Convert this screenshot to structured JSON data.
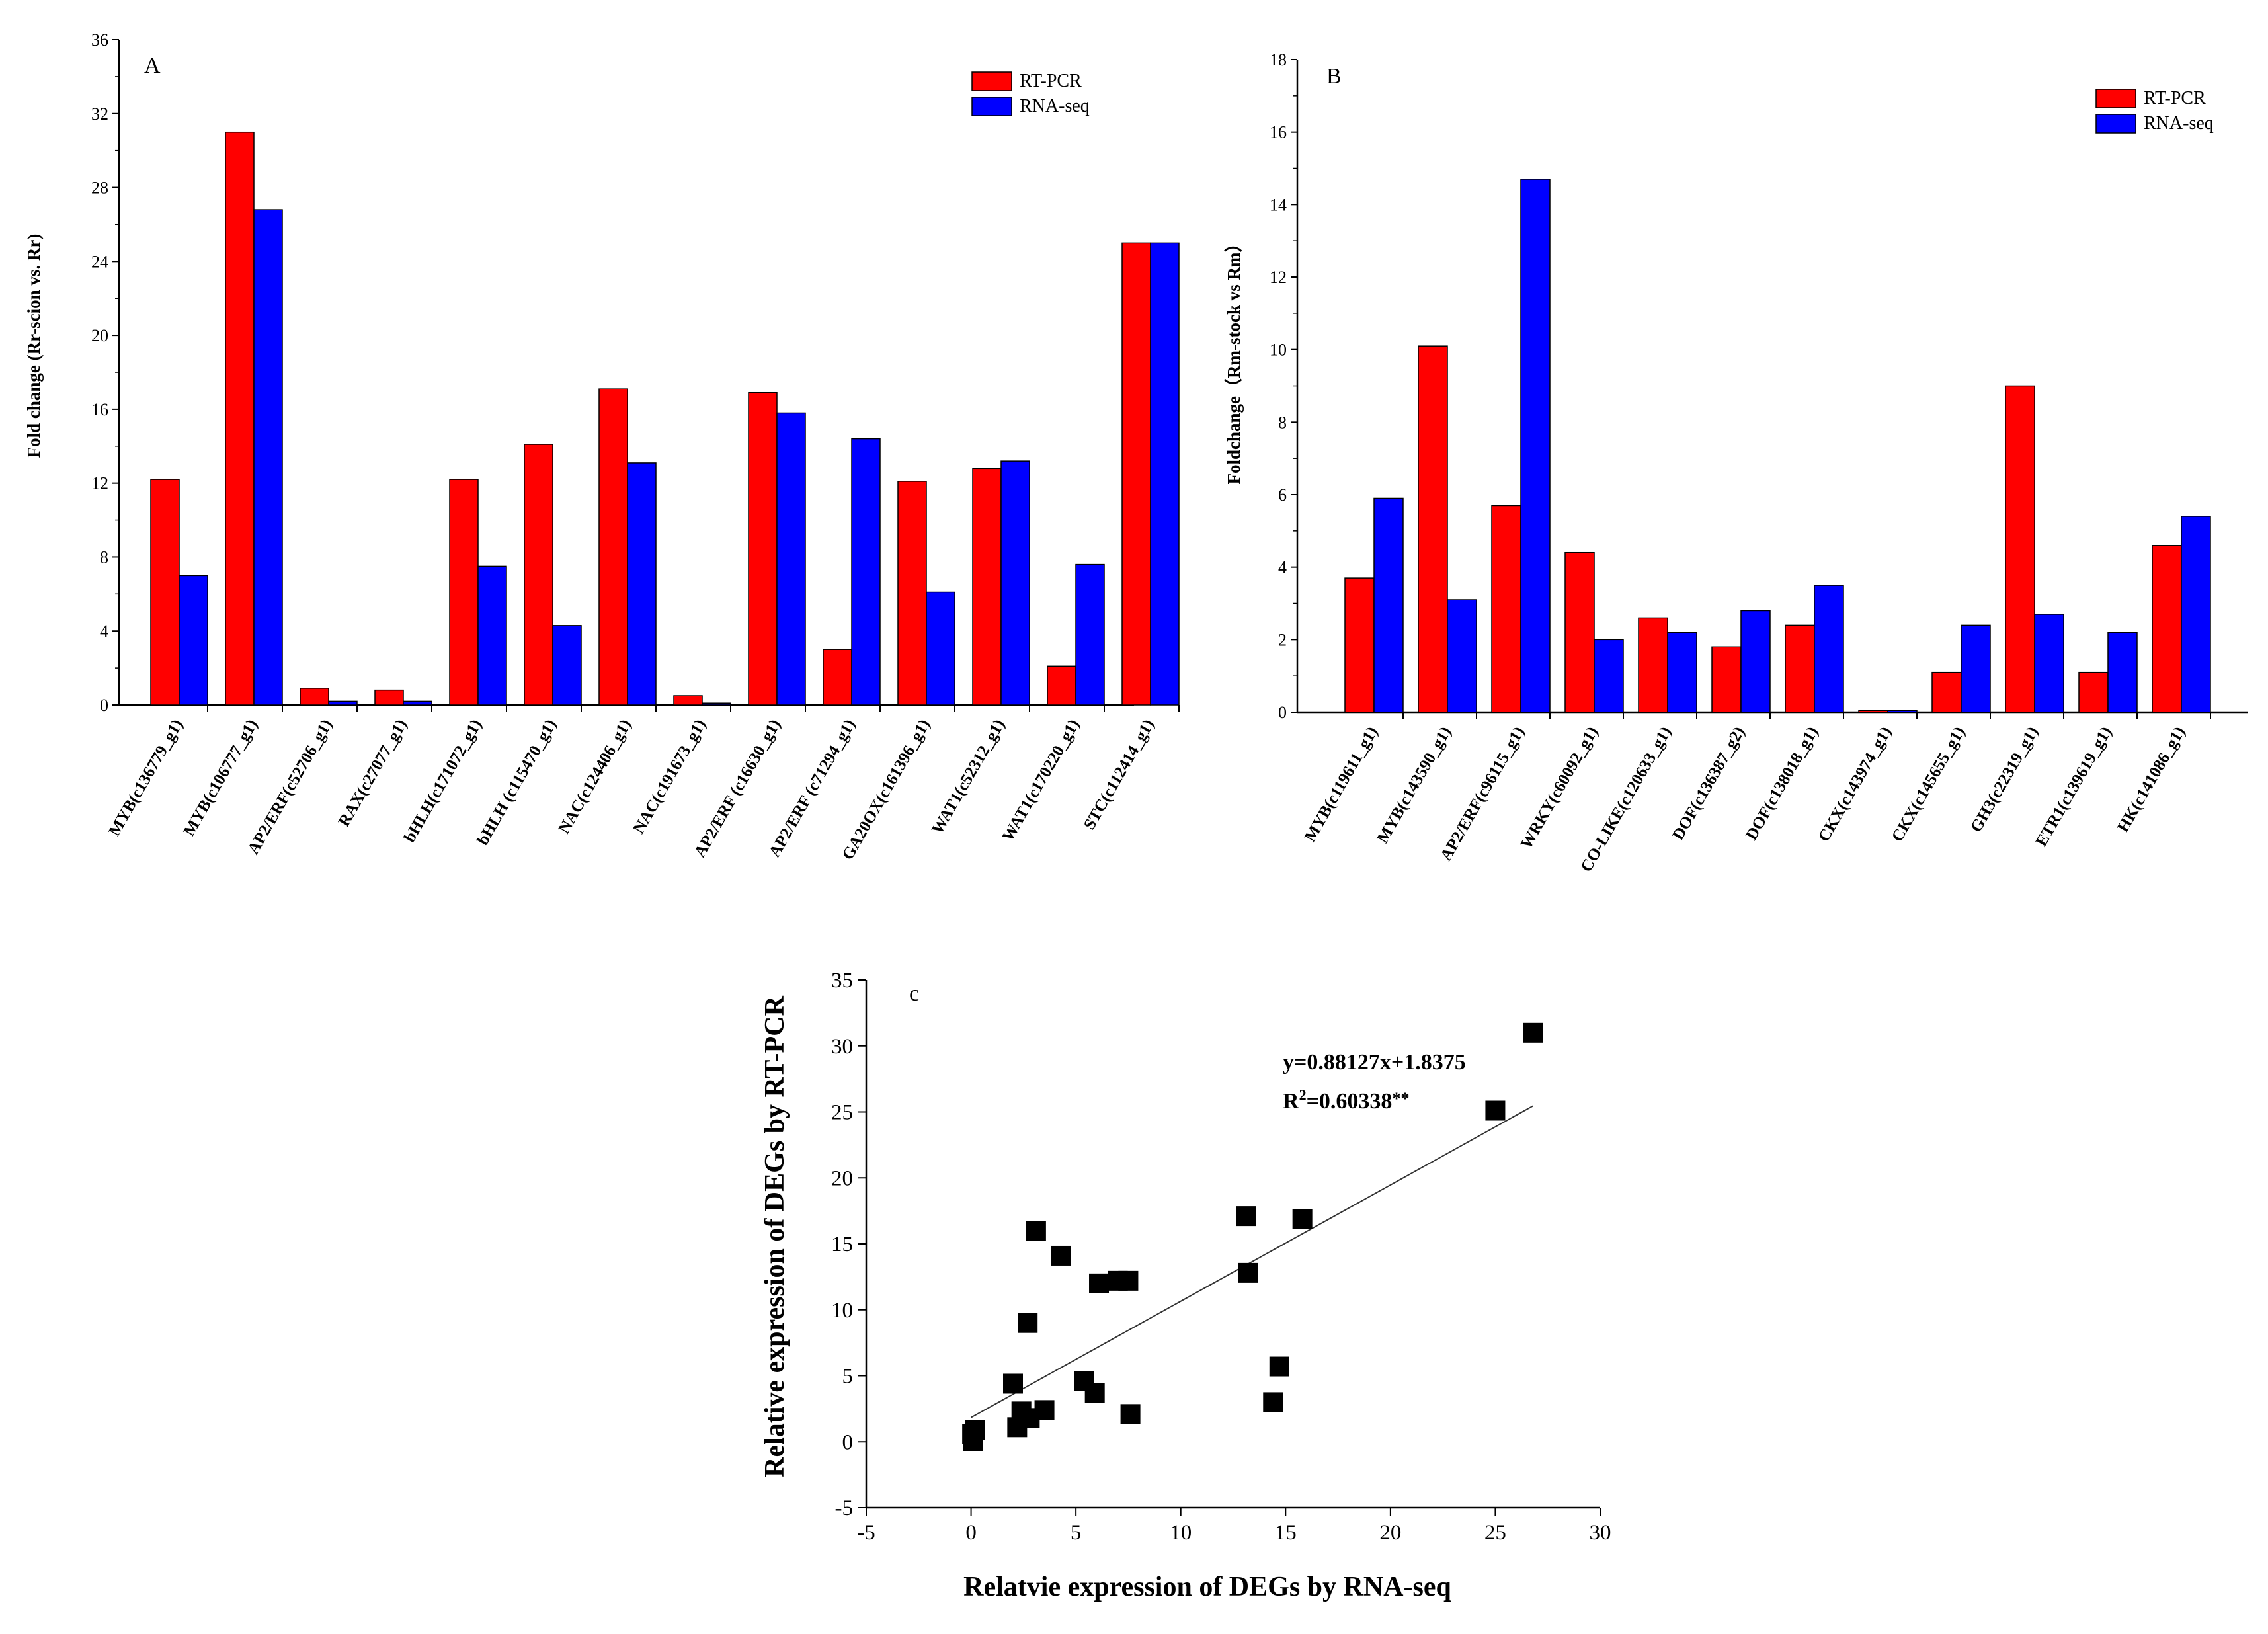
{
  "chart_data": [
    {
      "type": "bar",
      "panel_label": "A",
      "ylabel": "Fold change (Rr-scion vs. Rr)",
      "xlabel": "",
      "ylim": [
        0,
        36
      ],
      "yticks": [
        "0",
        "4",
        "8",
        "12",
        "16",
        "20",
        "24",
        "28",
        "32",
        "36"
      ],
      "legend": [
        "RT-PCR",
        "RNA-seq"
      ],
      "legend_position": "top-right",
      "colors": [
        "#ff0000",
        "#0000ff"
      ],
      "categories": [
        "MYB(c136779_g1)",
        "MYB(c106777_g1)",
        "AP2/ERF(c52706_g1)",
        "RAX(c27077_g1)",
        "bHLH(c171072_g1)",
        "bHLH (c115470_g1)",
        "NAC(c124406_g1)",
        "NAC(c191673_g1)",
        "AP2/ERF (c16630_g1)",
        "AP2/ERF (c71294_g1)",
        "GA20OX(c161396_g1)",
        "WAT1(c52312_g1)",
        "WAT1(c170220_g1)",
        "STC(c112414_g1)"
      ],
      "series": [
        {
          "name": "RT-PCR",
          "values": [
            12.2,
            31.0,
            0.9,
            0.8,
            12.2,
            14.1,
            17.1,
            0.5,
            16.9,
            3.0,
            12.1,
            12.8,
            2.1,
            25.0
          ]
        },
        {
          "name": "RNA-seq",
          "values": [
            7.0,
            26.8,
            0.2,
            0.2,
            7.5,
            4.3,
            13.1,
            0.1,
            15.8,
            14.4,
            6.1,
            13.2,
            7.6,
            25.0
          ]
        }
      ]
    },
    {
      "type": "bar",
      "panel_label": "B",
      "ylabel": "Foldchange（Rm-stock vs Rm）",
      "xlabel": "",
      "ylim": [
        0,
        18
      ],
      "yticks": [
        "0",
        "2",
        "4",
        "6",
        "8",
        "10",
        "12",
        "14",
        "16",
        "18"
      ],
      "legend": [
        "RT-PCR",
        "RNA-seq"
      ],
      "legend_position": "top-right",
      "colors": [
        "#ff0000",
        "#0000ff"
      ],
      "categories": [
        "MYB(c119611_g1)",
        "MYB(c143590_g1)",
        "AP2/ERF(c96115_g1)",
        "WRKY(c60092_g1)",
        "CO-LIKE(c120633_g1)",
        "DOF(c136387_g2)",
        "DOF(c138018_g1)",
        "CKX(c143974_g1)",
        "CKX(c145655_g1)",
        "GH3(c22319_g1)",
        "ETR1(c139619_g1)",
        "HK(c141086_g1)"
      ],
      "series": [
        {
          "name": "RT-PCR",
          "values": [
            3.7,
            10.1,
            5.7,
            4.4,
            2.6,
            1.8,
            2.4,
            0.05,
            1.1,
            9.0,
            1.1,
            4.6
          ]
        },
        {
          "name": "RNA-seq",
          "values": [
            5.9,
            3.1,
            14.7,
            2.0,
            2.2,
            2.8,
            3.5,
            0.05,
            2.4,
            2.7,
            2.2,
            5.4
          ]
        }
      ]
    },
    {
      "type": "scatter",
      "panel_label": "c",
      "xlabel": "Relatvie expression of DEGs by RNA-seq",
      "ylabel": "Relative expression of DEGs by RT-PCR",
      "xlim": [
        -5,
        30
      ],
      "ylim": [
        -5,
        35
      ],
      "xticks": [
        "-5",
        "0",
        "5",
        "10",
        "15",
        "20",
        "25",
        "30"
      ],
      "yticks": [
        "-5",
        "0",
        "5",
        "10",
        "15",
        "20",
        "25",
        "30",
        "35"
      ],
      "equation": "y=0.88127x+1.8375",
      "r2_prefix": "R",
      "r2_sup": "2",
      "r2_value": "=0.60338",
      "r2_stars": "**",
      "fit": {
        "slope": 0.88127,
        "intercept": 1.8375,
        "x_range": [
          0,
          26.8
        ]
      },
      "points": [
        {
          "x": 26.8,
          "y": 31.0
        },
        {
          "x": 25.0,
          "y": 25.1
        },
        {
          "x": 13.1,
          "y": 17.1
        },
        {
          "x": 15.8,
          "y": 16.9
        },
        {
          "x": 3.1,
          "y": 16.0
        },
        {
          "x": 4.3,
          "y": 14.1
        },
        {
          "x": 13.2,
          "y": 12.8
        },
        {
          "x": 6.1,
          "y": 12.0
        },
        {
          "x": 7.0,
          "y": 12.2
        },
        {
          "x": 7.5,
          "y": 12.2
        },
        {
          "x": 2.7,
          "y": 9.0
        },
        {
          "x": 14.7,
          "y": 5.7
        },
        {
          "x": 5.4,
          "y": 4.6
        },
        {
          "x": 2.0,
          "y": 4.4
        },
        {
          "x": 5.9,
          "y": 3.7
        },
        {
          "x": 14.4,
          "y": 3.0
        },
        {
          "x": 3.5,
          "y": 2.4
        },
        {
          "x": 2.4,
          "y": 2.3
        },
        {
          "x": 7.6,
          "y": 2.1
        },
        {
          "x": 2.8,
          "y": 1.8
        },
        {
          "x": 2.2,
          "y": 1.1
        },
        {
          "x": 0.2,
          "y": 0.9
        },
        {
          "x": 0.1,
          "y": 0.05
        },
        {
          "x": 0.05,
          "y": 0.6
        }
      ]
    }
  ]
}
